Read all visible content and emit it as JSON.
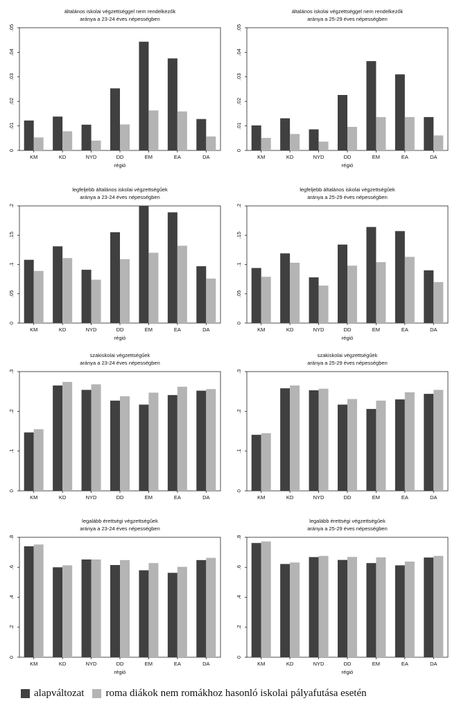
{
  "chart_data": [
    {
      "type": "bar",
      "title": "általános iskolai végzettséggel nem rendelkezők",
      "subtitle": "aránya a 23-24 éves népességben",
      "xlabel": "régió",
      "ylabel": "",
      "ylim": [
        0,
        0.05
      ],
      "yticks": [
        0,
        0.01,
        0.02,
        0.03,
        0.04,
        0.05
      ],
      "ytick_labels": [
        "0",
        ".01",
        ".02",
        ".03",
        ".04",
        ".05"
      ],
      "categories": [
        "KM",
        "KD",
        "NYD",
        "DD",
        "EM",
        "EA",
        "DA"
      ],
      "series": [
        {
          "name": "alapváltozat",
          "values": [
            0.0122,
            0.0138,
            0.0105,
            0.0253,
            0.0443,
            0.0375,
            0.0128
          ]
        },
        {
          "name": "roma diákok nem romákhoz hasonló iskolai pályafutása esetén",
          "values": [
            0.0053,
            0.0078,
            0.004,
            0.0106,
            0.0163,
            0.0159,
            0.0057
          ]
        }
      ]
    },
    {
      "type": "bar",
      "title": "általános iskolai végzettséggel nem rendelkezők",
      "subtitle": "aránya a 25-29 éves népességben",
      "xlabel": "régió",
      "ylabel": "",
      "ylim": [
        0,
        0.05
      ],
      "yticks": [
        0,
        0.01,
        0.02,
        0.03,
        0.04,
        0.05
      ],
      "ytick_labels": [
        "0",
        ".01",
        ".02",
        ".03",
        ".04",
        ".05"
      ],
      "categories": [
        "KM",
        "KD",
        "NYD",
        "DD",
        "EM",
        "EA",
        "DA"
      ],
      "series": [
        {
          "name": "alapváltozat",
          "values": [
            0.0102,
            0.0131,
            0.0086,
            0.0226,
            0.0364,
            0.031,
            0.0136
          ]
        },
        {
          "name": "roma diákok nem romákhoz hasonló iskolai pályafutása esetén",
          "values": [
            0.0051,
            0.0067,
            0.0036,
            0.0096,
            0.0136,
            0.0136,
            0.0061
          ]
        }
      ]
    },
    {
      "type": "bar",
      "title": "legfeljebb általános iskolai végzettségűek",
      "subtitle": "aránya a 23-24 éves népességben",
      "xlabel": "régió",
      "ylabel": "",
      "ylim": [
        0,
        0.2
      ],
      "yticks": [
        0,
        0.05,
        0.1,
        0.15,
        0.2
      ],
      "ytick_labels": [
        "0",
        ".05",
        ".1",
        ".15",
        ".2"
      ],
      "categories": [
        "KM",
        "KD",
        "NYD",
        "DD",
        "EM",
        "EA",
        "DA"
      ],
      "series": [
        {
          "name": "alapváltozat",
          "values": [
            0.108,
            0.131,
            0.091,
            0.155,
            0.2,
            0.189,
            0.097
          ]
        },
        {
          "name": "roma diákok nem romákhoz hasonló iskolai pályafutása esetén",
          "values": [
            0.089,
            0.111,
            0.074,
            0.109,
            0.12,
            0.132,
            0.076
          ]
        }
      ]
    },
    {
      "type": "bar",
      "title": "legfeljebb általános iskolai végzettségűek",
      "subtitle": "aránya a 25-29 éves népességben",
      "xlabel": "régió",
      "ylabel": "",
      "ylim": [
        0,
        0.2
      ],
      "yticks": [
        0,
        0.05,
        0.1,
        0.15,
        0.2
      ],
      "ytick_labels": [
        "0",
        ".05",
        ".1",
        ".15",
        ".2"
      ],
      "categories": [
        "KM",
        "KD",
        "NYD",
        "DD",
        "EM",
        "EA",
        "DA"
      ],
      "series": [
        {
          "name": "alapváltozat",
          "values": [
            0.094,
            0.119,
            0.078,
            0.134,
            0.164,
            0.157,
            0.09
          ]
        },
        {
          "name": "roma diákok nem romákhoz hasonló iskolai pályafutása esetén",
          "values": [
            0.079,
            0.103,
            0.064,
            0.098,
            0.104,
            0.113,
            0.07
          ]
        }
      ]
    },
    {
      "type": "bar",
      "title": "szakiskolai végzettségűek",
      "subtitle": "aránya a 23-24 éves népességben",
      "xlabel": "",
      "ylabel": "",
      "ylim": [
        0,
        0.3
      ],
      "yticks": [
        0,
        0.1,
        0.2,
        0.3
      ],
      "ytick_labels": [
        "0",
        ".1",
        ".2",
        ".3"
      ],
      "categories": [
        "KM",
        "KD",
        "NYD",
        "DD",
        "EM",
        "EA",
        "DA"
      ],
      "series": [
        {
          "name": "alapváltozat",
          "values": [
            0.147,
            0.265,
            0.254,
            0.227,
            0.217,
            0.241,
            0.252
          ]
        },
        {
          "name": "roma diákok nem romákhoz hasonló iskolai pályafutása esetén",
          "values": [
            0.155,
            0.274,
            0.268,
            0.238,
            0.247,
            0.262,
            0.256
          ]
        }
      ]
    },
    {
      "type": "bar",
      "title": "szakiskolai végzettségűek",
      "subtitle": "aránya a 25-29 éves népességben",
      "xlabel": "",
      "ylabel": "",
      "ylim": [
        0,
        0.3
      ],
      "yticks": [
        0,
        0.1,
        0.2,
        0.3
      ],
      "ytick_labels": [
        "0",
        ".1",
        ".2",
        ".3"
      ],
      "categories": [
        "KM",
        "KD",
        "NYD",
        "DD",
        "EM",
        "EA",
        "DA"
      ],
      "series": [
        {
          "name": "alapváltozat",
          "values": [
            0.141,
            0.258,
            0.253,
            0.217,
            0.206,
            0.23,
            0.244
          ]
        },
        {
          "name": "roma diákok nem romákhoz hasonló iskolai pályafutása esetén",
          "values": [
            0.145,
            0.265,
            0.257,
            0.231,
            0.227,
            0.248,
            0.254
          ]
        }
      ]
    },
    {
      "type": "bar",
      "title": "legalább érettségi végzettségűek",
      "subtitle": "aránya a 23-24 éves népességben",
      "xlabel": "régió",
      "ylabel": "",
      "ylim": [
        0,
        0.8
      ],
      "yticks": [
        0,
        0.2,
        0.4,
        0.6,
        0.8
      ],
      "ytick_labels": [
        "0",
        ".2",
        ".4",
        ".6",
        ".8"
      ],
      "categories": [
        "KM",
        "KD",
        "NYD",
        "DD",
        "EM",
        "EA",
        "DA"
      ],
      "series": [
        {
          "name": "alapváltozat",
          "values": [
            0.74,
            0.6,
            0.652,
            0.615,
            0.58,
            0.563,
            0.648
          ]
        },
        {
          "name": "roma diákok nem romákhoz hasonló iskolai pályafutása esetén",
          "values": [
            0.752,
            0.613,
            0.652,
            0.648,
            0.628,
            0.603,
            0.663
          ]
        }
      ]
    },
    {
      "type": "bar",
      "title": "legalább érettségi végzettségűek",
      "subtitle": "aránya a 25-29 éves népességben",
      "xlabel": "régió",
      "ylabel": "",
      "ylim": [
        0,
        0.8
      ],
      "yticks": [
        0,
        0.2,
        0.4,
        0.6,
        0.8
      ],
      "ytick_labels": [
        "0",
        ".2",
        ".4",
        ".6",
        ".8"
      ],
      "categories": [
        "KM",
        "KD",
        "NYD",
        "DD",
        "EM",
        "EA",
        "DA"
      ],
      "series": [
        {
          "name": "alapváltozat",
          "values": [
            0.762,
            0.622,
            0.668,
            0.649,
            0.628,
            0.613,
            0.665
          ]
        },
        {
          "name": "roma diákok nem romákhoz hasonló iskolai pályafutása esetén",
          "values": [
            0.772,
            0.632,
            0.676,
            0.669,
            0.666,
            0.638,
            0.676
          ]
        }
      ]
    }
  ],
  "colors": {
    "series1": "#404040",
    "series2": "#b4b4b4",
    "frame": "#222222"
  },
  "legend": {
    "item1": "alapváltozat",
    "item2": "roma diákok nem romákhoz hasonló iskolai pályafutása esetén"
  }
}
